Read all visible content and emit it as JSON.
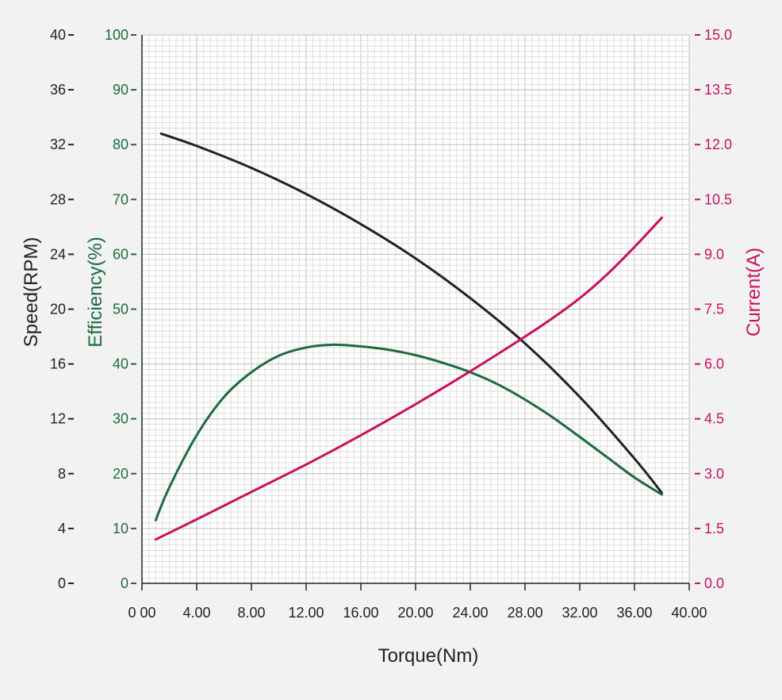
{
  "colors": {
    "background": "#f2f2f2",
    "plot_background": "#ffffff",
    "grid_minor": "#dddddd",
    "grid_major": "#bdbdbd",
    "axis": "#222222",
    "speed": "#222222",
    "efficiency": "#1e6a3e",
    "current": "#c8125f"
  },
  "chart_data": {
    "type": "line",
    "xlabel": "Torque(Nm)",
    "xlim": [
      0,
      40
    ],
    "x_ticks": [
      "0 00",
      "4.00",
      "8.00",
      "12.00",
      "16.00",
      "20.00",
      "24.00",
      "28.00",
      "32.00",
      "36.00",
      "40.00"
    ],
    "axes": {
      "speed": {
        "label": "Speed(RPM)",
        "ylim": [
          0,
          40
        ],
        "ticks": [
          "0",
          "4",
          "8",
          "12",
          "16",
          "20",
          "24",
          "28",
          "32",
          "36",
          "40"
        ]
      },
      "efficiency": {
        "label": "Efficiency(%)",
        "ylim": [
          0,
          100
        ],
        "ticks": [
          "0",
          "10",
          "20",
          "30",
          "40",
          "50",
          "60",
          "70",
          "80",
          "90",
          "100"
        ]
      },
      "current": {
        "label": "Current(A)",
        "ylim": [
          0,
          15
        ],
        "ticks": [
          "0.0",
          "1.5",
          "3.0",
          "4.5",
          "6.0",
          "7.5",
          "9.0",
          "10.5",
          "12.0",
          "13.5",
          "15.0"
        ]
      }
    },
    "grid": true,
    "series": [
      {
        "id": "speed",
        "axis": "speed",
        "points": [
          [
            1.4,
            32.8
          ],
          [
            4,
            31.9
          ],
          [
            8,
            30.3
          ],
          [
            12,
            28.4
          ],
          [
            16,
            26.2
          ],
          [
            20,
            23.7
          ],
          [
            24,
            20.8
          ],
          [
            28,
            17.5
          ],
          [
            32,
            13.6
          ],
          [
            36,
            9.1
          ],
          [
            38,
            6.6
          ]
        ]
      },
      {
        "id": "efficiency",
        "axis": "efficiency",
        "points": [
          [
            1,
            11.5
          ],
          [
            2,
            17.5
          ],
          [
            4,
            27
          ],
          [
            6,
            34
          ],
          [
            8,
            38.5
          ],
          [
            10,
            41.5
          ],
          [
            12,
            43
          ],
          [
            14,
            43.5
          ],
          [
            16,
            43.2
          ],
          [
            18,
            42.6
          ],
          [
            20,
            41.6
          ],
          [
            22,
            40.2
          ],
          [
            24,
            38.5
          ],
          [
            26,
            36.3
          ],
          [
            28,
            33.5
          ],
          [
            30,
            30.3
          ],
          [
            32,
            26.7
          ],
          [
            34,
            23
          ],
          [
            36,
            19.3
          ],
          [
            38,
            16.2
          ]
        ]
      },
      {
        "id": "current",
        "axis": "current",
        "points": [
          [
            1,
            1.2
          ],
          [
            4,
            1.75
          ],
          [
            8,
            2.5
          ],
          [
            12,
            3.25
          ],
          [
            16,
            4.05
          ],
          [
            20,
            4.9
          ],
          [
            24,
            5.8
          ],
          [
            28,
            6.75
          ],
          [
            30,
            7.25
          ],
          [
            32,
            7.8
          ],
          [
            34,
            8.45
          ],
          [
            36,
            9.2
          ],
          [
            38,
            10.0
          ]
        ]
      }
    ]
  }
}
